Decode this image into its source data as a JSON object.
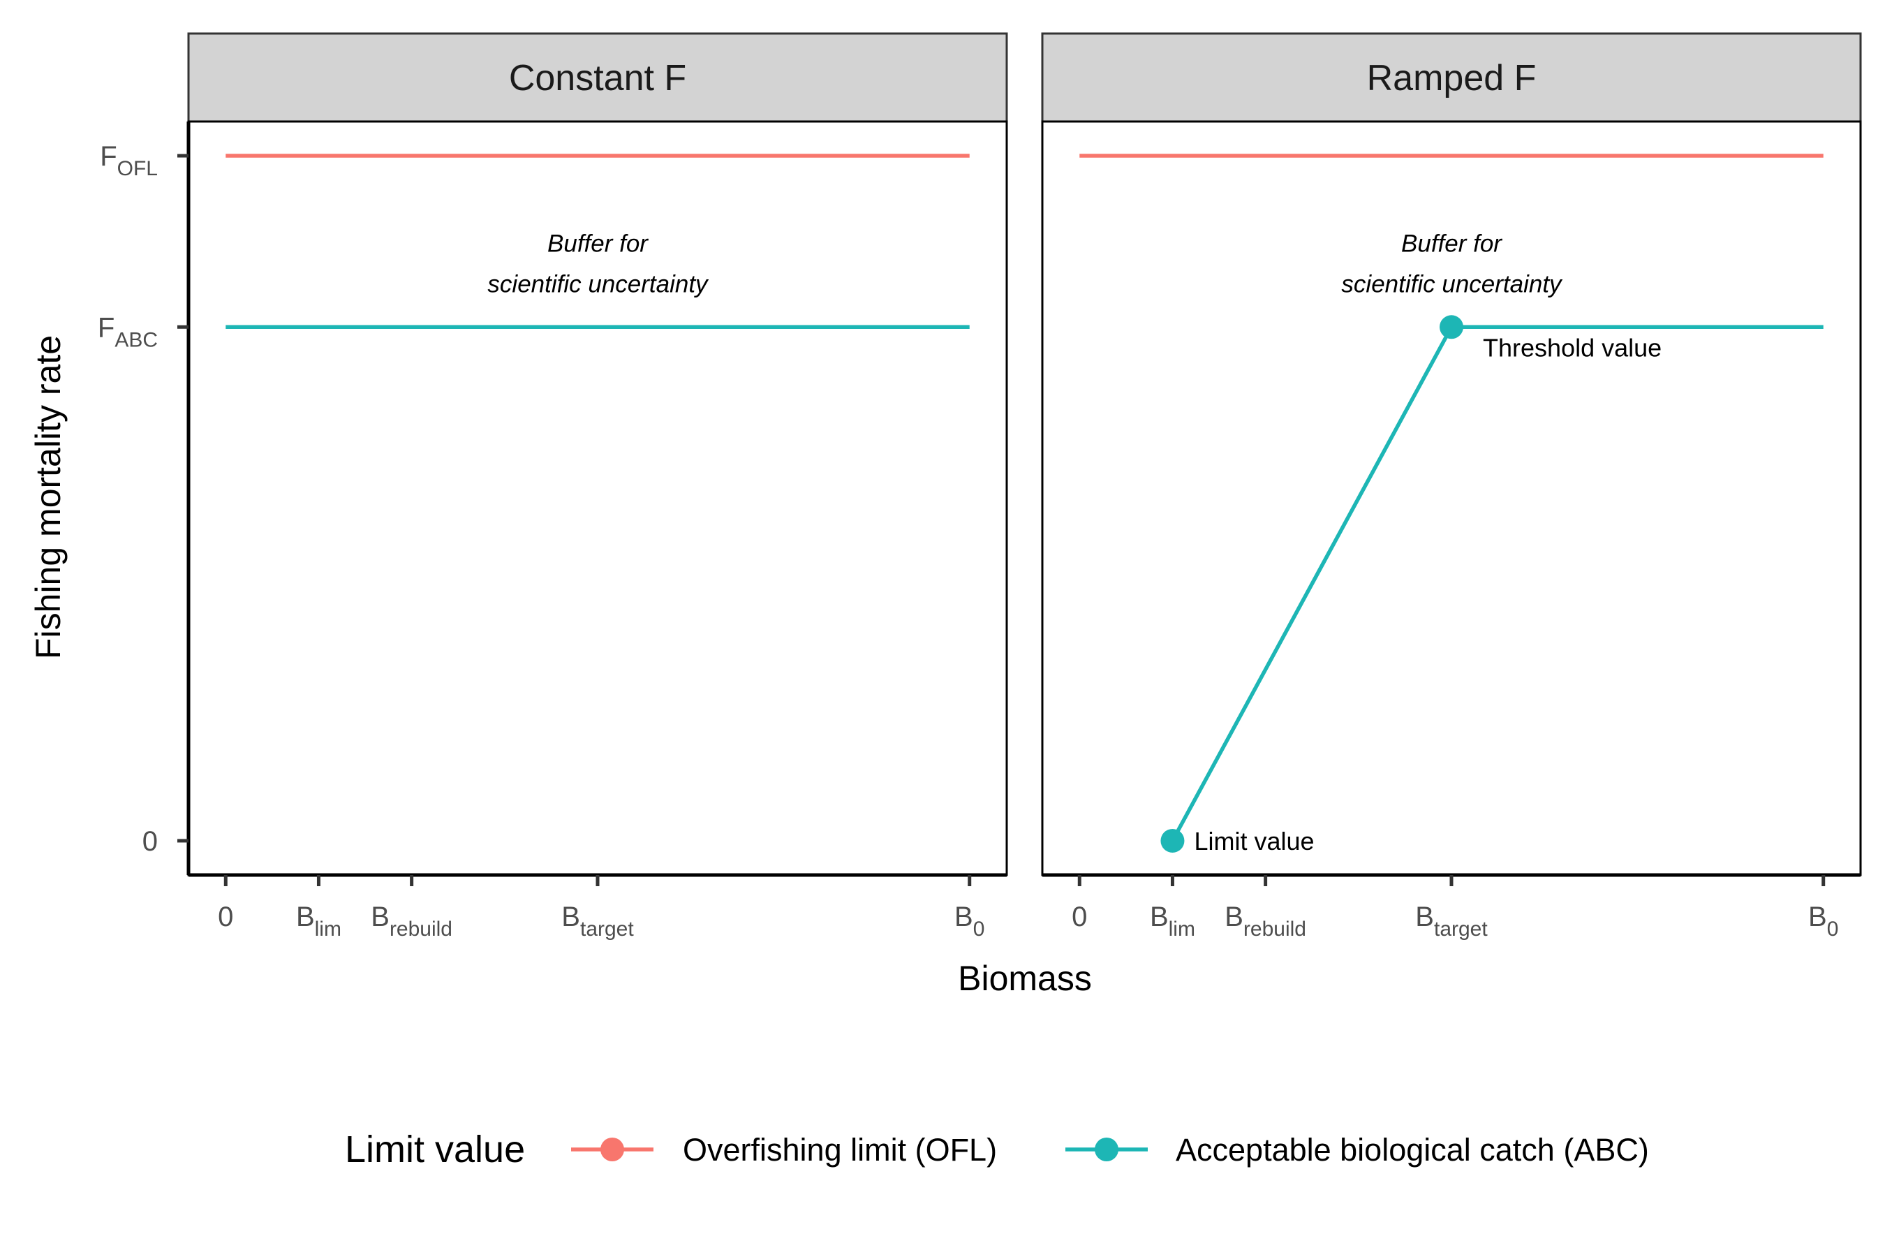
{
  "chart_data": {
    "type": "line",
    "xlabel": "Biomass",
    "ylabel": "Fishing mortality rate",
    "x_ticks": [
      {
        "value": 0,
        "base": "0",
        "sub": ""
      },
      {
        "value": 1,
        "base": "B",
        "sub": "lim"
      },
      {
        "value": 2,
        "base": "B",
        "sub": "rebuild"
      },
      {
        "value": 4,
        "base": "B",
        "sub": "target"
      },
      {
        "value": 8,
        "base": "B",
        "sub": "0"
      }
    ],
    "y_ticks": [
      {
        "value": 0,
        "base": "0",
        "sub": ""
      },
      {
        "value": 0.75,
        "base": "F",
        "sub": "ABC"
      },
      {
        "value": 1,
        "base": "F",
        "sub": "OFL"
      }
    ],
    "xlim": [
      -0.4,
      8.4
    ],
    "ylim": [
      -0.05,
      1.05
    ],
    "legend": {
      "title": "Limit value",
      "position": "bottom",
      "entries": [
        {
          "label": "Overfishing limit (OFL)",
          "color": "#F8766D"
        },
        {
          "label": "Acceptable biological catch (ABC)",
          "color": "#1DB6B5"
        }
      ]
    },
    "panels": [
      {
        "title": "Constant F",
        "annotation": [
          "Buffer for",
          "scientific uncertainty"
        ],
        "annotation_pos": {
          "x": 4,
          "y": 0.86
        },
        "series": [
          {
            "name": "Overfishing limit (OFL)",
            "color": "#F8766D",
            "x": [
              0,
              8
            ],
            "y": [
              1,
              1
            ],
            "points": []
          },
          {
            "name": "Acceptable biological catch (ABC)",
            "color": "#1DB6B5",
            "x": [
              0,
              8
            ],
            "y": [
              0.75,
              0.75
            ],
            "points": []
          }
        ]
      },
      {
        "title": "Ramped F",
        "annotation": [
          "Buffer for",
          "scientific uncertainty"
        ],
        "annotation_pos": {
          "x": 4,
          "y": 0.86
        },
        "series": [
          {
            "name": "Overfishing limit (OFL)",
            "color": "#F8766D",
            "x": [
              0,
              8
            ],
            "y": [
              1,
              1
            ],
            "points": []
          },
          {
            "name": "Acceptable biological catch (ABC)",
            "color": "#1DB6B5",
            "x": [
              1,
              4,
              8
            ],
            "y": [
              0,
              0.75,
              0.75
            ],
            "points": [
              {
                "x": 1,
                "y": 0,
                "label": "Limit value"
              },
              {
                "x": 4,
                "y": 0.75,
                "label": "Threshold value"
              }
            ]
          }
        ]
      }
    ]
  }
}
